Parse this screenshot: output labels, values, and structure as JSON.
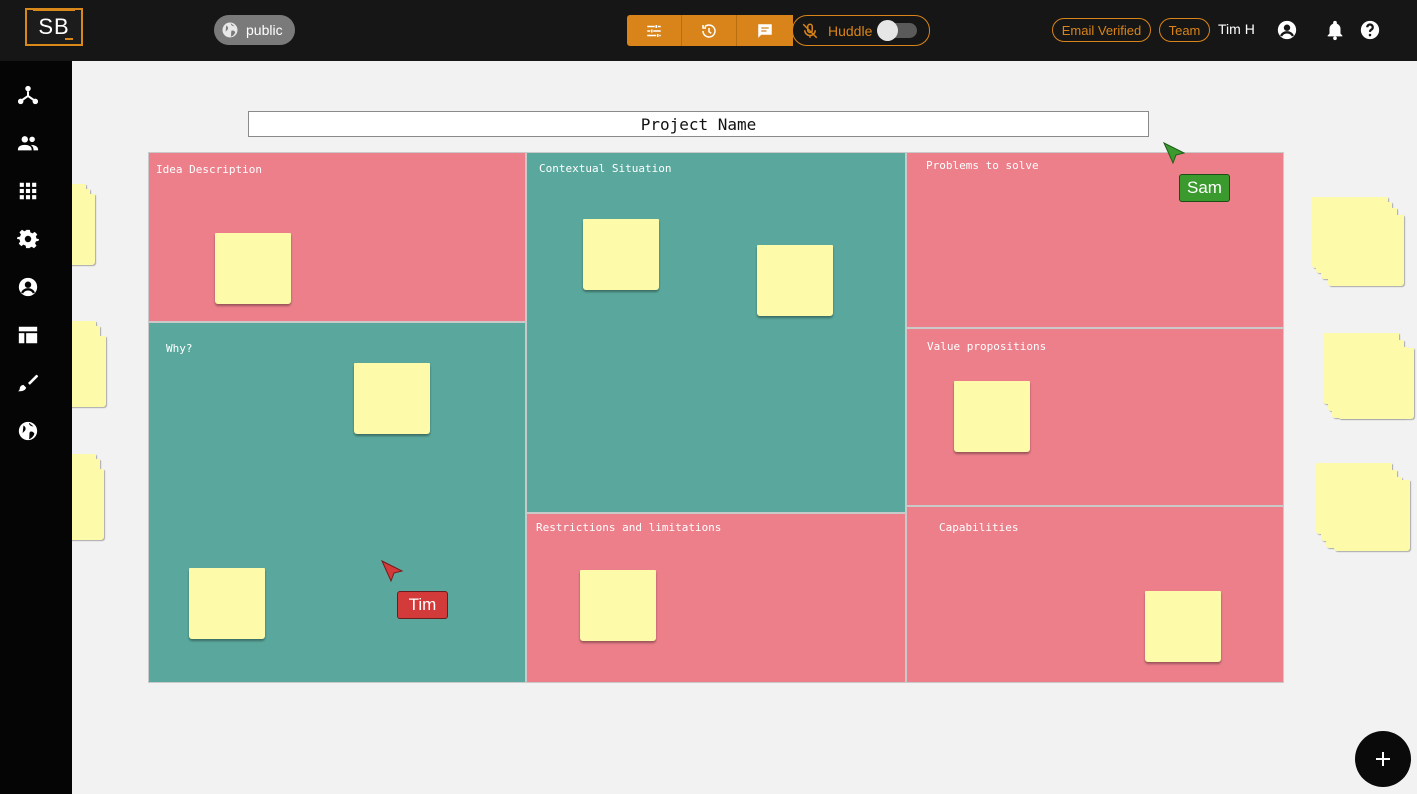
{
  "app": {
    "logo_text": "SB",
    "visibility": "public",
    "huddle_label": "Huddle",
    "huddle_on": false,
    "badges": [
      "Email Verified",
      "Team"
    ],
    "user_name": "Tim H",
    "accent_color": "#d8841a"
  },
  "toolbar": {
    "icons": [
      "sliders-icon",
      "history-icon",
      "chat-icon"
    ],
    "mic_icon": "mic-off-icon"
  },
  "sidebar": {
    "icons": [
      "network-icon",
      "people-icon",
      "grid-icon",
      "gear-icon",
      "account-icon",
      "table-icon",
      "brush-icon",
      "globe-icon"
    ]
  },
  "board": {
    "project_name": "Project Name",
    "sections": [
      {
        "label": "Idea Description",
        "color": "#ec7f8a"
      },
      {
        "label": "Contextual Situation",
        "color": "#5aa89d"
      },
      {
        "label": "Problems to solve",
        "color": "#ec7f8a"
      },
      {
        "label": "Why?",
        "color": "#5aa89d"
      },
      {
        "label": "Value propositions",
        "color": "#ec7f8a"
      },
      {
        "label": "Restrictions and limitations",
        "color": "#ec7f8a"
      },
      {
        "label": "Capabilities",
        "color": "#ec7f8a"
      }
    ],
    "sticky_note_color": "#fdfbaa"
  },
  "cursors": [
    {
      "name": "Sam",
      "color": "#3a9a2e"
    },
    {
      "name": "Tim",
      "color": "#d33a3a"
    }
  ],
  "fab_icon": "plus-icon"
}
